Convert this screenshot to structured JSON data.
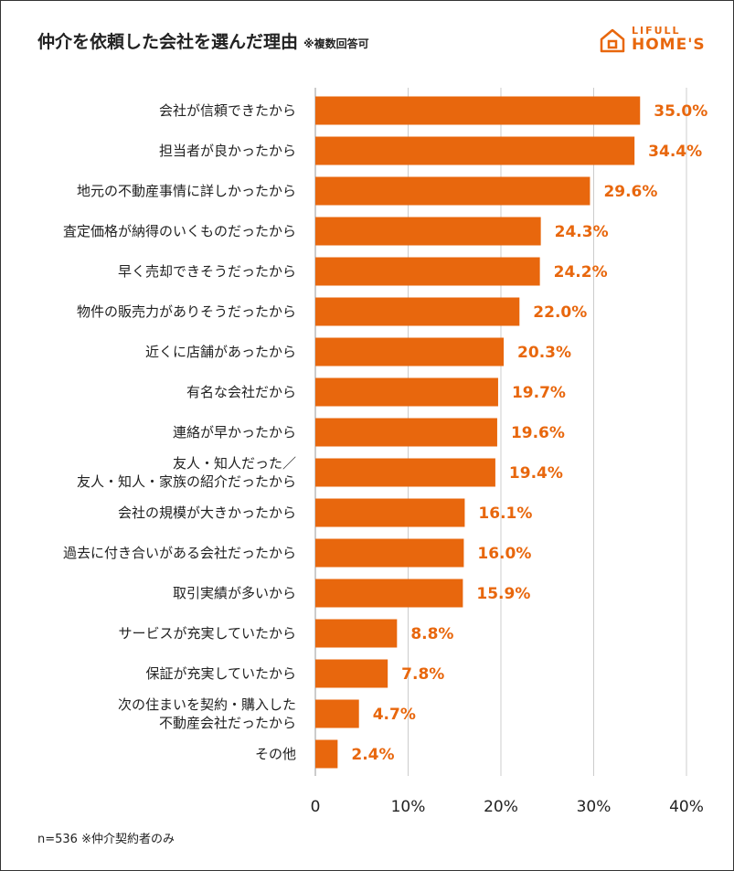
{
  "title": "仲介を依頼した会社を選んだ理由",
  "subtitle": "※複数回答可",
  "logo": {
    "top": "LIFULL",
    "main": "HOME'S"
  },
  "footnote": "n=536 ※仲介契約者のみ",
  "colors": {
    "bar": "#e8670d",
    "label": "#e8670d",
    "grid": "#cccccc"
  },
  "chart_data": {
    "type": "bar",
    "orientation": "horizontal",
    "categories": [
      [
        "会社が信頼できたから"
      ],
      [
        "担当者が良かったから"
      ],
      [
        "地元の不動産事情に詳しかったから"
      ],
      [
        "査定価格が納得のいくものだったから"
      ],
      [
        "早く売却できそうだったから"
      ],
      [
        "物件の販売力がありそうだったから"
      ],
      [
        "近くに店舗があったから"
      ],
      [
        "有名な会社だから"
      ],
      [
        "連絡が早かったから"
      ],
      [
        "友人・知人だった／",
        "友人・知人・家族の紹介だったから"
      ],
      [
        "会社の規模が大きかったから"
      ],
      [
        "過去に付き合いがある会社だったから"
      ],
      [
        "取引実績が多いから"
      ],
      [
        "サービスが充実していたから"
      ],
      [
        "保証が充実していたから"
      ],
      [
        "次の住まいを契約・購入した",
        "不動産会社だったから"
      ],
      [
        "その他"
      ]
    ],
    "values": [
      35.0,
      34.4,
      29.6,
      24.3,
      24.2,
      22.0,
      20.3,
      19.7,
      19.6,
      19.4,
      16.1,
      16.0,
      15.9,
      8.8,
      7.8,
      4.7,
      2.4
    ],
    "value_labels": [
      "35.0%",
      "34.4%",
      "29.6%",
      "24.3%",
      "24.2%",
      "22.0%",
      "20.3%",
      "19.7%",
      "19.6%",
      "19.4%",
      "16.1%",
      "16.0%",
      "15.9%",
      "8.8%",
      "7.8%",
      "4.7%",
      "2.4%"
    ],
    "xlim": [
      0,
      40
    ],
    "xticks": [
      0,
      10,
      20,
      30,
      40
    ],
    "xtick_labels": [
      "0",
      "10%",
      "20%",
      "30%",
      "40%"
    ],
    "grid": true
  }
}
